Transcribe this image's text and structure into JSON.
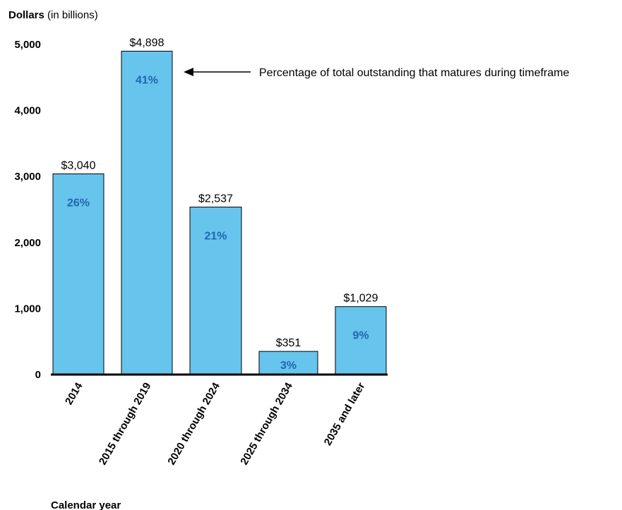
{
  "chart_data": {
    "type": "bar",
    "ylabel_bold": "Dollars",
    "ylabel_rest": " (in billions)",
    "xlabel": "Calendar year",
    "categories": [
      "2014",
      "2015 through 2019",
      "2020 through 2024",
      "2025 through 2034",
      "2035 and later"
    ],
    "values": [
      3040,
      4898,
      2537,
      351,
      1029
    ],
    "value_labels": [
      "$3,040",
      "$4,898",
      "$2,537",
      "$351",
      "$1,029"
    ],
    "percent_labels": [
      "26%",
      "41%",
      "21%",
      "3%",
      "9%"
    ],
    "yticks": [
      0,
      1000,
      2000,
      3000,
      4000,
      5000
    ],
    "ytick_labels": [
      "0",
      "1,000",
      "2,000",
      "3,000",
      "4,000",
      "5,000"
    ],
    "ylim": [
      0,
      5000
    ],
    "annotation": "Percentage of total outstanding that matures during timeframe",
    "bar_color": "#67c4ec",
    "percent_color": "#1f67b0",
    "grid": false
  }
}
